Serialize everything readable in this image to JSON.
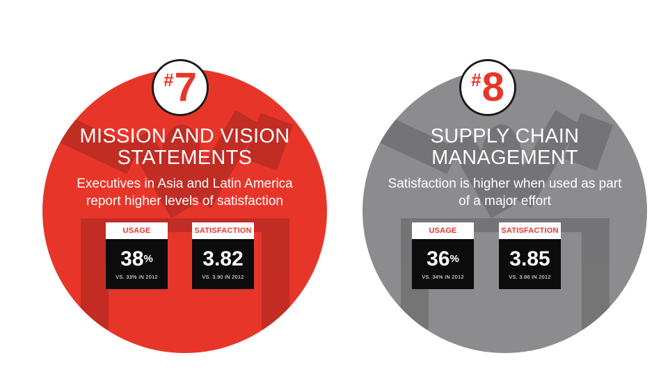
{
  "cards": [
    {
      "rank_hash": "#",
      "rank_number": "7",
      "title_line1": "MISSION AND VISION",
      "title_line2": "STATEMENTS",
      "subtitle_line1": "Executives in Asia and Latin America",
      "subtitle_line2": "report higher levels of satisfaction",
      "usage": {
        "label": "USAGE",
        "value": "38",
        "unit": "%",
        "comparison": "VS. 33% IN 2012"
      },
      "satisfaction": {
        "label": "SATISFACTION",
        "value": "3.82",
        "comparison": "VS. 3.90 IN 2012"
      },
      "color": "#e8352a"
    },
    {
      "rank_hash": "#",
      "rank_number": "8",
      "title_line1": "SUPPLY CHAIN",
      "title_line2": "MANAGEMENT",
      "subtitle_line1": "Satisfaction is higher when used as part",
      "subtitle_line2": "of a major effort",
      "usage": {
        "label": "USAGE",
        "value": "36",
        "unit": "%",
        "comparison": "VS. 34% IN 2012"
      },
      "satisfaction": {
        "label": "SATISFACTION",
        "value": "3.85",
        "comparison": "VS. 3.86 IN 2012"
      },
      "color": "#8c8c8e"
    }
  ],
  "colors": {
    "accent": "#e8352a",
    "gray": "#8c8c8e",
    "box": "#0c0c0c"
  }
}
